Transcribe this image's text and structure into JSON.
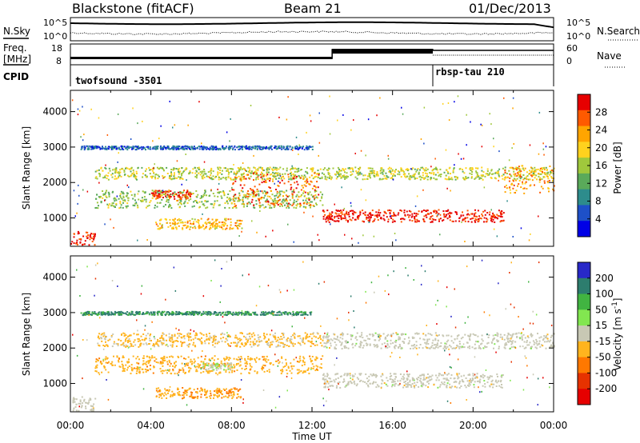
{
  "header": {
    "station": "Blackstone (fitACF)",
    "beam": "Beam 21",
    "date": "01/Dec/2013"
  },
  "status": {
    "nsky_label": "N.Sky",
    "nsearch_label": "N.Search",
    "noise_ticks_left": [
      "10^5",
      "10^0"
    ],
    "noise_ticks_right": [
      "10^5",
      "10^0"
    ],
    "freq_label_1": "Freq.",
    "freq_label_2": "[MHz]",
    "freq_ticks": [
      "18",
      "8"
    ],
    "nave_label": "Nave",
    "nave_ticks": [
      "60",
      "0"
    ],
    "cpid_label": "CPID",
    "programs": [
      {
        "name": "twofsound -3501",
        "start_hour": 0,
        "end_hour": 18
      },
      {
        "name": "rbsp-tau 210",
        "start_hour": 18,
        "end_hour": 24
      }
    ]
  },
  "colors": {
    "power_scale": [
      "#0000e6",
      "#1e50c8",
      "#2d8c8c",
      "#5aaa5a",
      "#a0c83c",
      "#ffd21e",
      "#ffa500",
      "#ff5a00",
      "#e60000"
    ],
    "velocity_scale": [
      "#2828c8",
      "#2d7d6e",
      "#41b441",
      "#82e650",
      "#c8c8b4",
      "#ffb41e",
      "#ff7800",
      "#e63200",
      "#e60000"
    ]
  },
  "chart_data": [
    {
      "type": "heatmap",
      "title": "",
      "parameter": "Power",
      "xlabel": "Time UT",
      "ylabel": "Slant Range [km]",
      "x_range_hours": [
        0,
        24
      ],
      "ylim": [
        200,
        4600
      ],
      "x_ticks": [
        "00:00",
        "04:00",
        "08:00",
        "12:00",
        "16:00",
        "20:00",
        "00:00"
      ],
      "y_ticks": [
        1000,
        2000,
        3000,
        4000
      ],
      "colorbar": {
        "label": "Power [dB]",
        "ticks": [
          "4",
          "8",
          "12",
          "16",
          "20",
          "24",
          "28"
        ],
        "range": [
          0,
          30
        ]
      },
      "scatter_features": [
        {
          "from_hour": 0.0,
          "to_hour": 1.2,
          "range_km": [
            250,
            650
          ],
          "value_db": 27
        },
        {
          "from_hour": 1.2,
          "to_hour": 12.5,
          "range_km": [
            1300,
            1800
          ],
          "value_db": 14
        },
        {
          "from_hour": 1.2,
          "to_hour": 12.5,
          "range_km": [
            2100,
            2450
          ],
          "value_db": 16
        },
        {
          "from_hour": 4.0,
          "to_hour": 6.0,
          "range_km": [
            1550,
            1800
          ],
          "value_db": 26
        },
        {
          "from_hour": 4.2,
          "to_hour": 8.5,
          "range_km": [
            700,
            1000
          ],
          "value_db": 20
        },
        {
          "from_hour": 8.0,
          "to_hour": 12.3,
          "range_km": [
            1350,
            2300
          ],
          "value_db": 25
        },
        {
          "from_hour": 12.5,
          "to_hour": 21.5,
          "range_km": [
            900,
            1250
          ],
          "value_db": 28
        },
        {
          "from_hour": 12.5,
          "to_hour": 24.0,
          "range_km": [
            2100,
            2450
          ],
          "value_db": 16
        },
        {
          "from_hour": 0.5,
          "to_hour": 12.0,
          "range_km": [
            2950,
            3050
          ],
          "value_db": 6
        },
        {
          "from_hour": 21.5,
          "to_hour": 24.0,
          "range_km": [
            1700,
            2500
          ],
          "value_db": 22
        }
      ]
    },
    {
      "type": "heatmap",
      "title": "",
      "parameter": "Velocity",
      "xlabel": "Time UT",
      "ylabel": "Slant Range [km]",
      "x_range_hours": [
        0,
        24
      ],
      "ylim": [
        200,
        4600
      ],
      "x_ticks": [
        "00:00",
        "04:00",
        "08:00",
        "12:00",
        "16:00",
        "20:00",
        "00:00"
      ],
      "y_ticks": [
        1000,
        2000,
        3000,
        4000
      ],
      "colorbar": {
        "label": "Velocity [m s^-1]",
        "ticks": [
          "200",
          "100",
          "50",
          "15",
          "-15",
          "-50",
          "-100",
          "-200"
        ],
        "range": [
          -250,
          250
        ]
      },
      "scatter_features": [
        {
          "from_hour": 0.0,
          "to_hour": 1.2,
          "range_km": [
            250,
            650
          ],
          "value_ms": 0
        },
        {
          "from_hour": 1.2,
          "to_hour": 12.5,
          "range_km": [
            1300,
            1800
          ],
          "value_ms": -60
        },
        {
          "from_hour": 4.2,
          "to_hour": 8.5,
          "range_km": [
            600,
            900
          ],
          "value_ms": -70
        },
        {
          "from_hour": 6.5,
          "to_hour": 8.0,
          "range_km": [
            1400,
            1600
          ],
          "value_ms": 20
        },
        {
          "from_hour": 12.5,
          "to_hour": 21.5,
          "range_km": [
            900,
            1300
          ],
          "value_ms": 0
        },
        {
          "from_hour": 12.5,
          "to_hour": 24.0,
          "range_km": [
            2000,
            2450
          ],
          "value_ms": 0
        },
        {
          "from_hour": 1.2,
          "to_hour": 12.5,
          "range_km": [
            2050,
            2450
          ],
          "value_ms": -40
        },
        {
          "from_hour": 0.5,
          "to_hour": 12.0,
          "range_km": [
            2950,
            3050
          ],
          "value_ms": 150
        }
      ]
    }
  ]
}
